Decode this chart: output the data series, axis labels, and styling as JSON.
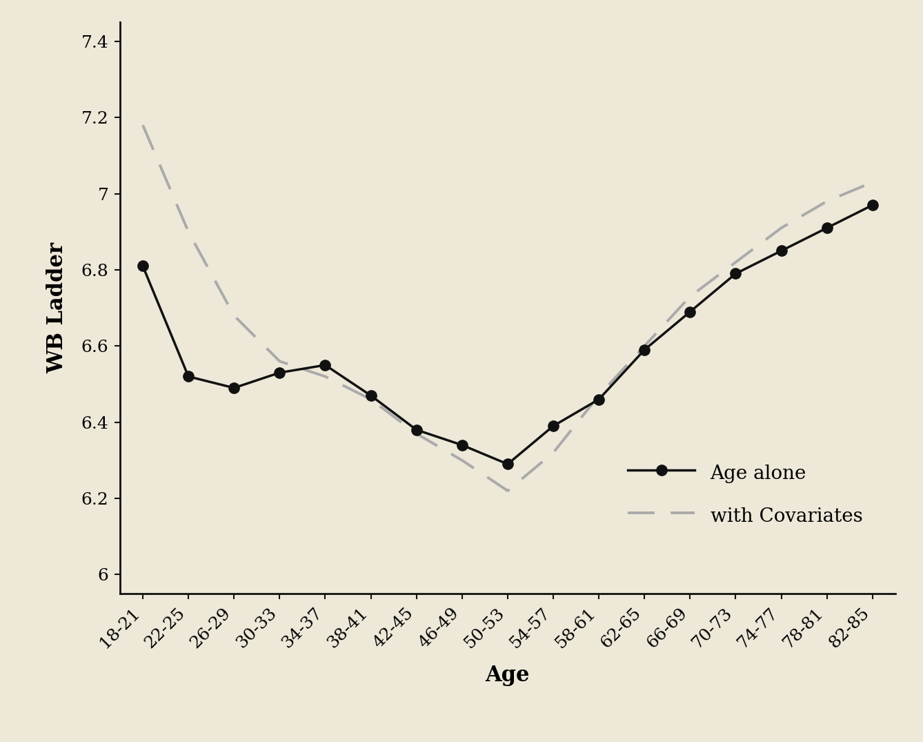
{
  "age_labels": [
    "18-21",
    "22-25",
    "26-29",
    "30-33",
    "34-37",
    "38-41",
    "42-45",
    "46-49",
    "50-53",
    "54-57",
    "58-61",
    "62-65",
    "66-69",
    "70-73",
    "74-77",
    "78-81",
    "82-85"
  ],
  "age_alone": [
    6.81,
    6.52,
    6.49,
    6.53,
    6.55,
    6.47,
    6.38,
    6.34,
    6.29,
    6.39,
    6.46,
    6.59,
    6.69,
    6.79,
    6.85,
    6.91,
    6.97
  ],
  "with_covariates": [
    7.18,
    6.9,
    6.68,
    6.56,
    6.52,
    6.46,
    6.37,
    6.3,
    6.22,
    6.32,
    6.47,
    6.6,
    6.73,
    6.82,
    6.91,
    6.98,
    7.03
  ],
  "ylabel": "WB Ladder",
  "xlabel": "Age",
  "ylim": [
    5.95,
    7.45
  ],
  "yticks": [
    6.0,
    6.2,
    6.4,
    6.6,
    6.8,
    7.0,
    7.2,
    7.4
  ],
  "background_color": "#ede8d8",
  "line_color_solid": "#111111",
  "line_color_dashed": "#aaaaaa",
  "legend_labels": [
    "Age alone",
    "with Covariates"
  ],
  "label_fontsize": 22,
  "tick_fontsize": 18,
  "legend_fontsize": 20
}
